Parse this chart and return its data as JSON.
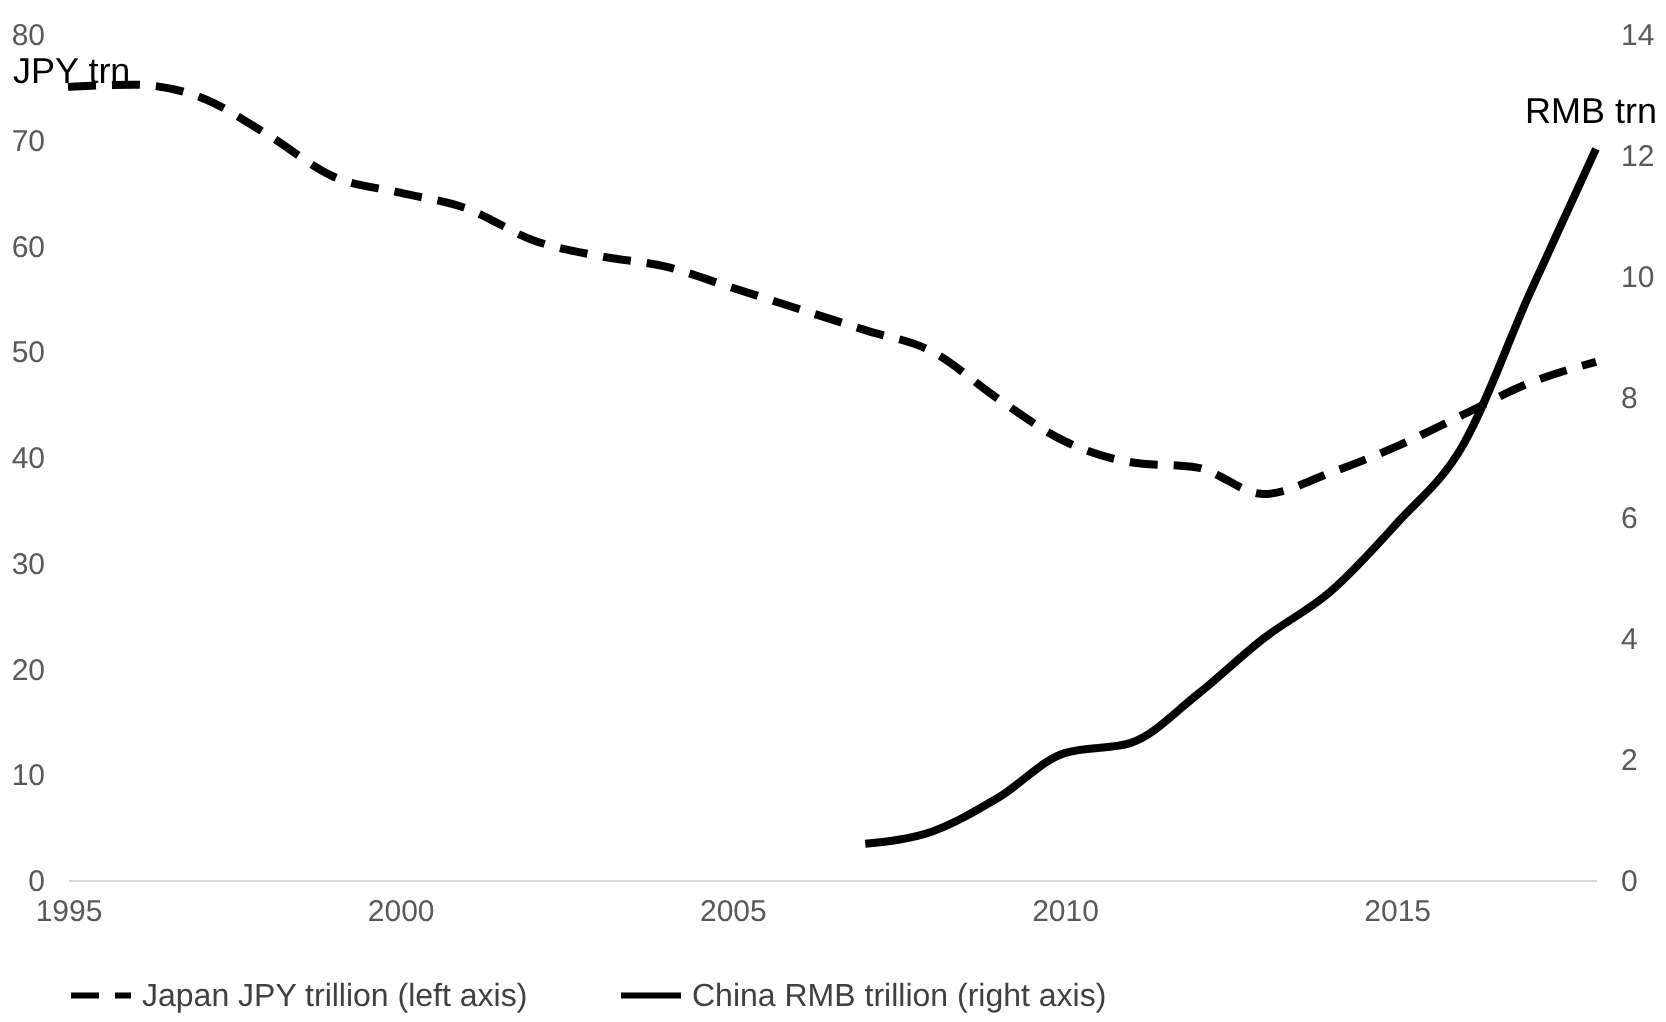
{
  "chart_data": {
    "type": "line",
    "ylabel": "JPY trn",
    "y2label": "RMB trn",
    "x": [
      1995,
      1996,
      1997,
      1998,
      1999,
      2000,
      2001,
      2002,
      2003,
      2004,
      2005,
      2006,
      2007,
      2008,
      2009,
      2010,
      2011,
      2012,
      2013,
      2014,
      2015,
      2016,
      2017,
      2018
    ],
    "series": [
      {
        "name": "Japan JPY trillion (left axis)",
        "color": "#000000",
        "line_style": "dashed",
        "values": [
          75,
          75.2,
          74,
          70.5,
          66.5,
          65,
          63.5,
          60.5,
          59,
          58,
          56,
          54,
          52,
          50,
          45.5,
          41.5,
          39.5,
          39,
          36.5,
          38.5,
          41,
          44,
          47,
          49
        ]
      },
      {
        "name": "China RMB trillion (right axis)",
        "color": "#000000",
        "line_style": "solid",
        "axis": "y2",
        "x": [
          2007,
          2008,
          2009,
          2010,
          2011,
          2012,
          2013,
          2014,
          2015,
          2016,
          2017,
          2018
        ],
        "values": [
          0.6,
          0.8,
          1.36,
          2.1,
          2.27,
          3.07,
          4.0,
          4.77,
          5.9,
          7.2,
          9.7,
          12.1
        ]
      }
    ],
    "xlim": [
      1995,
      2018
    ],
    "xticks": [
      1995,
      2000,
      2005,
      2010,
      2015
    ],
    "ylim": [
      0,
      80
    ],
    "yticks": [
      0,
      10,
      20,
      30,
      40,
      50,
      60,
      70,
      80
    ],
    "y2lim": [
      0,
      14
    ],
    "y2ticks": [
      0,
      2,
      4,
      6,
      8,
      10,
      12,
      14
    ],
    "grid": false,
    "legend": "bottom"
  }
}
